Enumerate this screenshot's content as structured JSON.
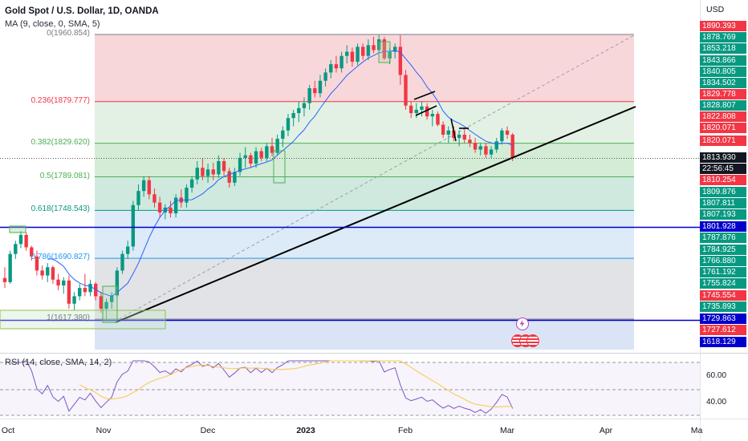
{
  "header": {
    "title": "Gold Spot / U.S. Dollar, 1D, OANDA",
    "ma_label": "MA (9, close, 0, SMA, 5)",
    "rsi_label": "RSI (14, close, SMA, 14, 2)",
    "currency": "USD"
  },
  "fib_levels": [
    {
      "label": "0(1960.854)",
      "color": "#787b86"
    },
    {
      "label": "0.236(1879.777)",
      "color": "#f23645"
    },
    {
      "label": "0.382(1829.620)",
      "color": "#4caf50"
    },
    {
      "label": "0.5(1789.081)",
      "color": "#4caf50"
    },
    {
      "label": "0.618(1748.543)",
      "color": "#089981"
    },
    {
      "label": "0.786(1690.827)",
      "color": "#2196f3"
    },
    {
      "label": "1(1617.380)",
      "color": "#787b86"
    }
  ],
  "price_tags": [
    {
      "value": "1890.393",
      "kind": "red"
    },
    {
      "value": "1878.769",
      "kind": "green"
    },
    {
      "value": "1853.218",
      "kind": "green"
    },
    {
      "value": "1843.866",
      "kind": "green"
    },
    {
      "value": "1840.805",
      "kind": "green"
    },
    {
      "value": "1834.502",
      "kind": "green"
    },
    {
      "value": "1829.778",
      "kind": "red"
    },
    {
      "value": "1828.807",
      "kind": "green"
    },
    {
      "value": "1822.808",
      "kind": "red"
    },
    {
      "value": "1820.071",
      "kind": "red"
    },
    {
      "value": "1820.071",
      "kind": "red"
    },
    {
      "value": "1813.930",
      "kind": "dark"
    },
    {
      "value": "22:56:45",
      "kind": "darkc"
    },
    {
      "value": "1810.254",
      "kind": "red"
    },
    {
      "value": "1809.876",
      "kind": "green"
    },
    {
      "value": "1807.811",
      "kind": "green"
    },
    {
      "value": "1807.193",
      "kind": "green"
    },
    {
      "value": "1801.928",
      "kind": "blue"
    },
    {
      "value": "1787.876",
      "kind": "green"
    },
    {
      "value": "1784.925",
      "kind": "green"
    },
    {
      "value": "1766.880",
      "kind": "green"
    },
    {
      "value": "1761.192",
      "kind": "green"
    },
    {
      "value": "1755.824",
      "kind": "green"
    },
    {
      "value": "1745.554",
      "kind": "red"
    },
    {
      "value": "1735.893",
      "kind": "green"
    },
    {
      "value": "1729.863",
      "kind": "blue"
    },
    {
      "value": "1727.612",
      "kind": "red"
    },
    {
      "value": "1618.129",
      "kind": "blue"
    }
  ],
  "rsi_ticks": [
    "60.00",
    "40.00"
  ],
  "x_axis": [
    {
      "label": "Oct",
      "bold": false
    },
    {
      "label": "Nov",
      "bold": false
    },
    {
      "label": "Dec",
      "bold": false
    },
    {
      "label": "2023",
      "bold": true
    },
    {
      "label": "Feb",
      "bold": false
    },
    {
      "label": "Mar",
      "bold": false
    },
    {
      "label": "Apr",
      "bold": false
    },
    {
      "label": "Ma",
      "bold": false
    }
  ],
  "colors": {
    "up": "#089981",
    "down": "#f23645",
    "ma": "#2962ff",
    "rsi": "#7e57c2",
    "rsi_ma": "#f7c948",
    "support": "#0000ff"
  },
  "events": [
    {
      "icon": "lightning-icon"
    },
    {
      "icon": "us-flag-icon"
    },
    {
      "icon": "us-flag-icon"
    }
  ],
  "chart_data": {
    "type": "candlestick",
    "ohlc": [
      [
        1667,
        1680,
        1655,
        1662
      ],
      [
        1662,
        1700,
        1660,
        1696
      ],
      [
        1696,
        1712,
        1690,
        1708
      ],
      [
        1708,
        1724,
        1703,
        1719
      ],
      [
        1719,
        1722,
        1700,
        1704
      ],
      [
        1704,
        1706,
        1688,
        1693
      ],
      [
        1693,
        1700,
        1670,
        1676
      ],
      [
        1676,
        1682,
        1665,
        1670
      ],
      [
        1670,
        1685,
        1662,
        1680
      ],
      [
        1680,
        1682,
        1660,
        1665
      ],
      [
        1665,
        1672,
        1652,
        1658
      ],
      [
        1658,
        1668,
        1648,
        1664
      ],
      [
        1664,
        1670,
        1630,
        1636
      ],
      [
        1636,
        1650,
        1628,
        1645
      ],
      [
        1645,
        1660,
        1640,
        1655
      ],
      [
        1655,
        1672,
        1645,
        1650
      ],
      [
        1650,
        1665,
        1645,
        1660
      ],
      [
        1660,
        1662,
        1640,
        1645
      ],
      [
        1645,
        1650,
        1625,
        1630
      ],
      [
        1630,
        1642,
        1618,
        1638
      ],
      [
        1638,
        1650,
        1630,
        1646
      ],
      [
        1646,
        1680,
        1642,
        1676
      ],
      [
        1676,
        1700,
        1672,
        1696
      ],
      [
        1696,
        1712,
        1690,
        1705
      ],
      [
        1705,
        1760,
        1700,
        1755
      ],
      [
        1755,
        1780,
        1748,
        1772
      ],
      [
        1772,
        1790,
        1765,
        1785
      ],
      [
        1785,
        1790,
        1762,
        1768
      ],
      [
        1768,
        1775,
        1752,
        1758
      ],
      [
        1758,
        1765,
        1740,
        1746
      ],
      [
        1746,
        1756,
        1738,
        1752
      ],
      [
        1752,
        1760,
        1740,
        1745
      ],
      [
        1745,
        1768,
        1740,
        1764
      ],
      [
        1764,
        1774,
        1752,
        1758
      ],
      [
        1758,
        1780,
        1752,
        1776
      ],
      [
        1776,
        1790,
        1770,
        1786
      ],
      [
        1786,
        1808,
        1780,
        1800
      ],
      [
        1800,
        1812,
        1785,
        1790
      ],
      [
        1790,
        1805,
        1782,
        1798
      ],
      [
        1798,
        1806,
        1785,
        1792
      ],
      [
        1792,
        1815,
        1788,
        1808
      ],
      [
        1808,
        1812,
        1790,
        1796
      ],
      [
        1796,
        1800,
        1776,
        1782
      ],
      [
        1782,
        1800,
        1778,
        1795
      ],
      [
        1795,
        1818,
        1790,
        1812
      ],
      [
        1812,
        1825,
        1800,
        1815
      ],
      [
        1815,
        1818,
        1800,
        1805
      ],
      [
        1805,
        1825,
        1800,
        1820
      ],
      [
        1820,
        1824,
        1808,
        1812
      ],
      [
        1812,
        1830,
        1808,
        1826
      ],
      [
        1826,
        1836,
        1814,
        1818
      ],
      [
        1818,
        1840,
        1815,
        1835
      ],
      [
        1835,
        1850,
        1825,
        1845
      ],
      [
        1845,
        1865,
        1838,
        1860
      ],
      [
        1860,
        1870,
        1850,
        1866
      ],
      [
        1866,
        1880,
        1855,
        1872
      ],
      [
        1872,
        1885,
        1862,
        1878
      ],
      [
        1878,
        1900,
        1870,
        1896
      ],
      [
        1896,
        1905,
        1885,
        1890
      ],
      [
        1890,
        1912,
        1885,
        1905
      ],
      [
        1905,
        1920,
        1898,
        1915
      ],
      [
        1915,
        1930,
        1908,
        1925
      ],
      [
        1925,
        1935,
        1915,
        1920
      ],
      [
        1920,
        1940,
        1915,
        1935
      ],
      [
        1935,
        1948,
        1926,
        1940
      ],
      [
        1940,
        1945,
        1922,
        1928
      ],
      [
        1928,
        1950,
        1924,
        1946
      ],
      [
        1946,
        1950,
        1930,
        1935
      ],
      [
        1935,
        1955,
        1930,
        1948
      ],
      [
        1948,
        1958,
        1938,
        1942
      ],
      [
        1942,
        1960,
        1938,
        1955
      ],
      [
        1955,
        1958,
        1930,
        1932
      ],
      [
        1932,
        1945,
        1925,
        1940
      ],
      [
        1940,
        1950,
        1932,
        1946
      ],
      [
        1946,
        1960,
        1900,
        1912
      ],
      [
        1912,
        1918,
        1870,
        1875
      ],
      [
        1875,
        1880,
        1860,
        1866
      ],
      [
        1866,
        1878,
        1860,
        1870
      ],
      [
        1870,
        1880,
        1862,
        1874
      ],
      [
        1874,
        1878,
        1858,
        1862
      ],
      [
        1862,
        1870,
        1850,
        1865
      ],
      [
        1865,
        1868,
        1850,
        1852
      ],
      [
        1852,
        1856,
        1836,
        1840
      ],
      [
        1840,
        1850,
        1830,
        1845
      ],
      [
        1845,
        1850,
        1832,
        1836
      ],
      [
        1836,
        1845,
        1826,
        1840
      ],
      [
        1840,
        1848,
        1830,
        1834
      ],
      [
        1834,
        1840,
        1825,
        1830
      ],
      [
        1830,
        1836,
        1818,
        1822
      ],
      [
        1822,
        1830,
        1815,
        1826
      ],
      [
        1826,
        1830,
        1812,
        1816
      ],
      [
        1816,
        1826,
        1812,
        1822
      ],
      [
        1822,
        1836,
        1818,
        1832
      ],
      [
        1832,
        1848,
        1828,
        1845
      ],
      [
        1845,
        1850,
        1835,
        1840
      ],
      [
        1840,
        1842,
        1808,
        1812
      ]
    ]
  }
}
